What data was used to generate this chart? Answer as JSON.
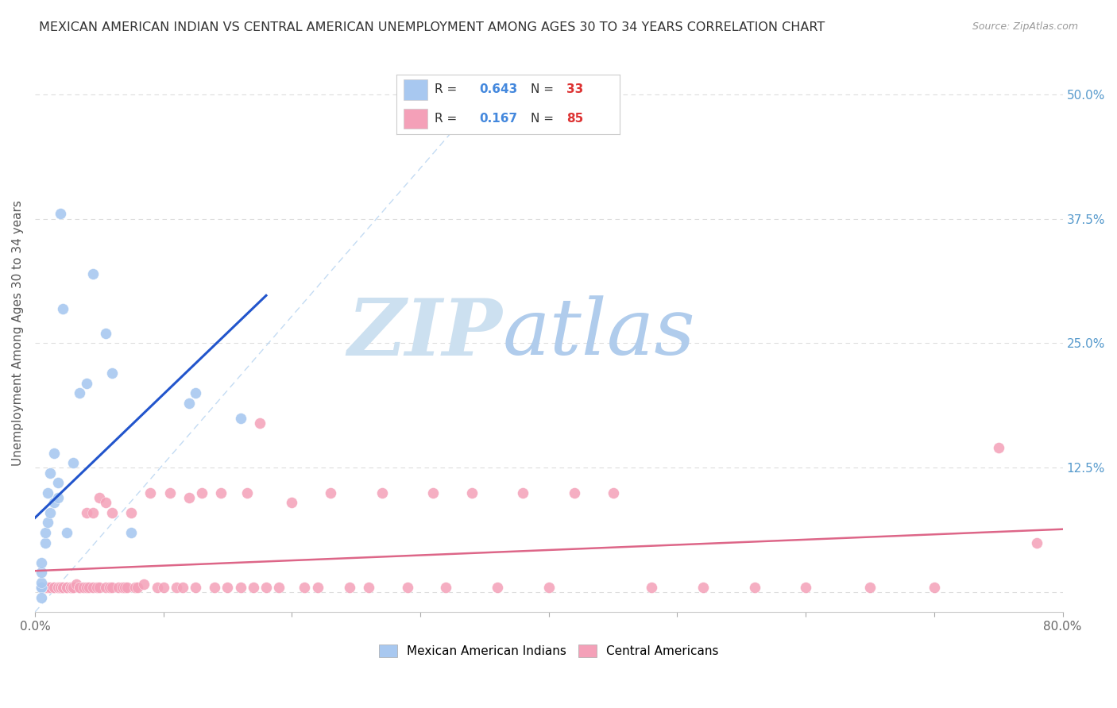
{
  "title": "MEXICAN AMERICAN INDIAN VS CENTRAL AMERICAN UNEMPLOYMENT AMONG AGES 30 TO 34 YEARS CORRELATION CHART",
  "source": "Source: ZipAtlas.com",
  "ylabel": "Unemployment Among Ages 30 to 34 years",
  "xlim": [
    0.0,
    0.8
  ],
  "ylim": [
    -0.02,
    0.54
  ],
  "xticks": [
    0.0,
    0.1,
    0.2,
    0.3,
    0.4,
    0.5,
    0.6,
    0.7,
    0.8
  ],
  "xticklabels": [
    "0.0%",
    "",
    "",
    "",
    "",
    "",
    "",
    "",
    "80.0%"
  ],
  "ytick_right_labels": [
    "50.0%",
    "37.5%",
    "25.0%",
    "12.5%",
    ""
  ],
  "ytick_right_values": [
    0.5,
    0.375,
    0.25,
    0.125,
    0.0
  ],
  "r_blue": 0.643,
  "n_blue": 33,
  "r_pink": 0.167,
  "n_pink": 85,
  "blue_color": "#a8c8f0",
  "pink_color": "#f4a0b8",
  "blue_line_color": "#2255cc",
  "pink_line_color": "#dd6688",
  "blue_scatter_x": [
    0.005,
    0.005,
    0.005,
    0.005,
    0.005,
    0.005,
    0.005,
    0.005,
    0.005,
    0.005,
    0.008,
    0.008,
    0.01,
    0.01,
    0.012,
    0.012,
    0.015,
    0.015,
    0.018,
    0.018,
    0.02,
    0.022,
    0.025,
    0.03,
    0.035,
    0.04,
    0.045,
    0.055,
    0.06,
    0.075,
    0.12,
    0.125,
    0.16
  ],
  "blue_scatter_y": [
    0.005,
    0.005,
    0.005,
    0.005,
    0.005,
    0.005,
    0.01,
    0.02,
    0.03,
    -0.005,
    0.05,
    0.06,
    0.07,
    0.1,
    0.08,
    0.12,
    0.09,
    0.14,
    0.095,
    0.11,
    0.38,
    0.285,
    0.06,
    0.13,
    0.2,
    0.21,
    0.32,
    0.26,
    0.22,
    0.06,
    0.19,
    0.2,
    0.175
  ],
  "pink_scatter_x": [
    0.005,
    0.008,
    0.01,
    0.012,
    0.015,
    0.015,
    0.018,
    0.018,
    0.02,
    0.02,
    0.022,
    0.022,
    0.025,
    0.025,
    0.028,
    0.028,
    0.03,
    0.03,
    0.032,
    0.035,
    0.035,
    0.038,
    0.04,
    0.04,
    0.042,
    0.045,
    0.045,
    0.048,
    0.05,
    0.05,
    0.055,
    0.055,
    0.058,
    0.06,
    0.06,
    0.065,
    0.068,
    0.07,
    0.072,
    0.075,
    0.078,
    0.08,
    0.085,
    0.09,
    0.095,
    0.1,
    0.105,
    0.11,
    0.115,
    0.12,
    0.125,
    0.13,
    0.14,
    0.145,
    0.15,
    0.16,
    0.165,
    0.17,
    0.175,
    0.18,
    0.19,
    0.2,
    0.21,
    0.22,
    0.23,
    0.245,
    0.26,
    0.27,
    0.29,
    0.31,
    0.32,
    0.34,
    0.36,
    0.38,
    0.4,
    0.42,
    0.45,
    0.48,
    0.52,
    0.56,
    0.6,
    0.65,
    0.7,
    0.75,
    0.78
  ],
  "pink_scatter_y": [
    0.005,
    0.005,
    0.005,
    0.005,
    0.005,
    0.005,
    0.005,
    0.005,
    0.005,
    0.005,
    0.005,
    0.005,
    0.005,
    0.005,
    0.005,
    0.005,
    0.005,
    0.005,
    0.008,
    0.005,
    0.005,
    0.005,
    0.005,
    0.08,
    0.005,
    0.005,
    0.08,
    0.005,
    0.005,
    0.095,
    0.005,
    0.09,
    0.005,
    0.005,
    0.08,
    0.005,
    0.005,
    0.005,
    0.005,
    0.08,
    0.005,
    0.005,
    0.008,
    0.1,
    0.005,
    0.005,
    0.1,
    0.005,
    0.005,
    0.095,
    0.005,
    0.1,
    0.005,
    0.1,
    0.005,
    0.005,
    0.1,
    0.005,
    0.17,
    0.005,
    0.005,
    0.09,
    0.005,
    0.005,
    0.1,
    0.005,
    0.005,
    0.1,
    0.005,
    0.1,
    0.005,
    0.1,
    0.005,
    0.1,
    0.005,
    0.1,
    0.1,
    0.005,
    0.005,
    0.005,
    0.005,
    0.005,
    0.005,
    0.145,
    0.05
  ]
}
